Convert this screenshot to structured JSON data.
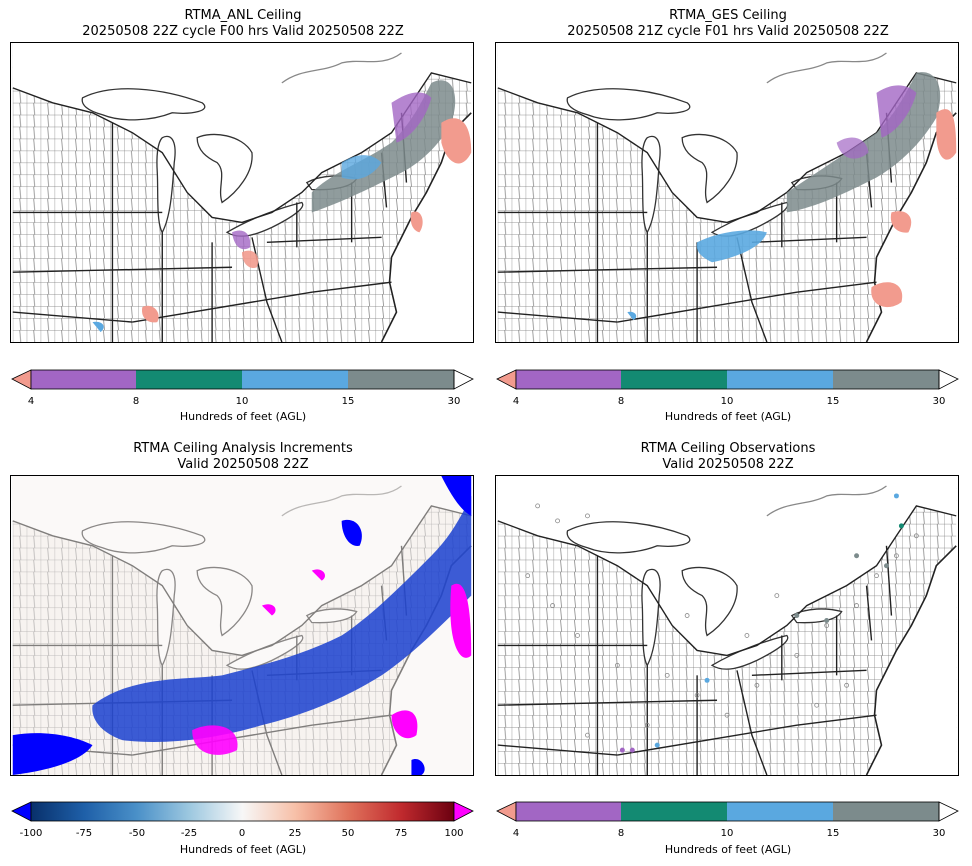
{
  "panels": [
    {
      "title_line1": "RTMA_ANL Ceiling",
      "title_line2": "20250508 22Z cycle F00 hrs Valid 20250508 22Z",
      "map_description": "Ceiling analysis map, northeastern US",
      "colorbar": {
        "ticks": [
          "4",
          "8",
          "10",
          "15",
          "30"
        ],
        "label": "Hundreds of feet (AGL)",
        "colors": [
          "#f29b8e",
          "#a266c4",
          "#138a72",
          "#5aa8e0",
          "#7c8b8c"
        ],
        "under": "#f29b8e",
        "over": "#ffffff"
      }
    },
    {
      "title_line1": "RTMA_GES Ceiling",
      "title_line2": "20250508 21Z cycle F01 hrs Valid 20250508 22Z",
      "map_description": "Ceiling first guess map, northeastern US",
      "colorbar": {
        "ticks": [
          "4",
          "8",
          "10",
          "15",
          "30"
        ],
        "label": "Hundreds of feet (AGL)",
        "colors": [
          "#f29b8e",
          "#a266c4",
          "#138a72",
          "#5aa8e0",
          "#7c8b8c"
        ],
        "under": "#f29b8e",
        "over": "#ffffff"
      }
    },
    {
      "title_line1": "RTMA Ceiling Analysis Increments",
      "title_line2": "Valid 20250508 22Z",
      "map_description": "Ceiling analysis increment map, northeastern US",
      "colorbar": {
        "ticks": [
          "-100",
          "-75",
          "-50",
          "-25",
          "0",
          "25",
          "50",
          "75",
          "100"
        ],
        "label": "Hundreds of feet (AGL)",
        "under": "#0000ff",
        "over": "#ff00ff",
        "diverging_colors": [
          "#08306b",
          "#1e5fa8",
          "#4a90c8",
          "#9dc8e0",
          "#f7f7f7",
          "#f7c0a8",
          "#e0735c",
          "#c02a2e",
          "#6b0010"
        ]
      }
    },
    {
      "title_line1": "RTMA Ceiling Observations",
      "title_line2": "Valid 20250508 22Z",
      "map_description": "Ceiling station observations map, northeastern US",
      "colorbar": {
        "ticks": [
          "4",
          "8",
          "10",
          "15",
          "30"
        ],
        "label": "Hundreds of feet (AGL)",
        "colors": [
          "#f29b8e",
          "#a266c4",
          "#138a72",
          "#5aa8e0",
          "#7c8b8c"
        ],
        "under": "#f29b8e",
        "over": "#ffffff"
      }
    }
  ],
  "chart_data": [
    {
      "type": "heatmap",
      "title": "RTMA_ANL Ceiling — 20250508 22Z cycle F00 hrs Valid 20250508 22Z",
      "colorbar_bounds": [
        4,
        8,
        10,
        15,
        30
      ],
      "colorbar_label": "Hundreds of feet (AGL)",
      "extend": "both"
    },
    {
      "type": "heatmap",
      "title": "RTMA_GES Ceiling — 20250508 21Z cycle F01 hrs Valid 20250508 22Z",
      "colorbar_bounds": [
        4,
        8,
        10,
        15,
        30
      ],
      "colorbar_label": "Hundreds of feet (AGL)",
      "extend": "both"
    },
    {
      "type": "heatmap",
      "title": "RTMA Ceiling Analysis Increments — Valid 20250508 22Z",
      "colorbar_range": [
        -100,
        100
      ],
      "colorbar_ticks": [
        -100,
        -75,
        -50,
        -25,
        0,
        25,
        50,
        75,
        100
      ],
      "colorbar_label": "Hundreds of feet (AGL)",
      "extend": "both"
    },
    {
      "type": "scatter",
      "title": "RTMA Ceiling Observations — Valid 20250508 22Z",
      "colorbar_bounds": [
        4,
        8,
        10,
        15,
        30
      ],
      "colorbar_label": "Hundreds of feet (AGL)",
      "extend": "both"
    }
  ]
}
